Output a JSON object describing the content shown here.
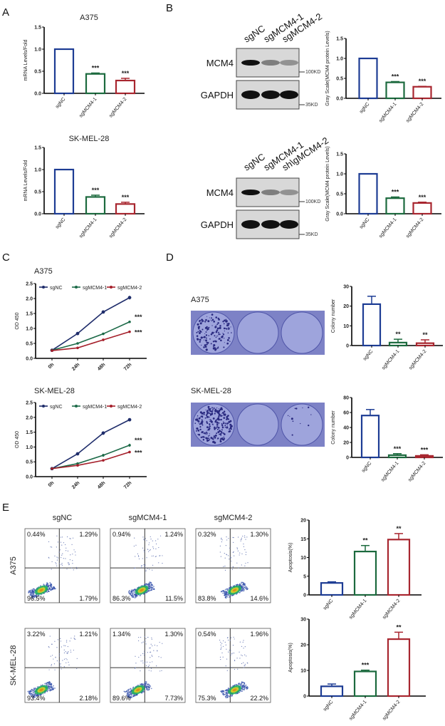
{
  "panels": {
    "A": "A",
    "B": "B",
    "C": "C",
    "D": "D",
    "E": "E"
  },
  "colors": {
    "sgNC": "#1d3c94",
    "sgMCM4-1": "#1c6a3e",
    "sgMCM4-2": "#a8262f",
    "line_sgNC": "#1f2d6b",
    "line_sgMCM4-1": "#1c6a48",
    "line_sgMCM4-2": "#a51f2a"
  },
  "blots": [
    {
      "lanes": [
        "sgNC",
        "sgMCM4-1",
        "sgMCM4-2"
      ],
      "bands": [
        "MCM4",
        "GAPDH"
      ],
      "markers": [
        "100KD",
        "35KD"
      ]
    },
    {
      "lanes": [
        "sgNC",
        "sgMCM4-1",
        "sh\\gMCM4-2"
      ],
      "bands": [
        "MCM4",
        "GAPDH"
      ],
      "markers": [
        "100KD",
        "35KD"
      ]
    }
  ],
  "dishes": {
    "labels": [
      "A375",
      "SK-MEL-28"
    ]
  },
  "flow": {
    "columns": [
      "sgNC",
      "sgMCM4-1",
      "sgMCM4-2"
    ],
    "rows": [
      "A375",
      "SK-MEL-28"
    ],
    "quadrants": [
      [
        [
          "0.44%",
          "1.29%",
          "96.5%",
          "1.79%"
        ],
        [
          "0.94%",
          "1.24%",
          "86.3%",
          "11.5%"
        ],
        [
          "0.32%",
          "1.30%",
          "83.8%",
          "14.6%"
        ]
      ],
      [
        [
          "3.22%",
          "1.21%",
          "93.4%",
          "2.18%"
        ],
        [
          "1.34%",
          "1.30%",
          "89.6%",
          "7.73%"
        ],
        [
          "0.54%",
          "1.96%",
          "75.3%",
          "22.2%"
        ]
      ]
    ]
  },
  "chart_data": [
    {
      "id": "A1",
      "type": "bar",
      "title": "A375",
      "ylabel": "mRNA Levels/Fold",
      "categories": [
        "sgNC",
        "sgMCM4-1",
        "sgMCM4-2"
      ],
      "values": [
        1.0,
        0.44,
        0.29
      ],
      "errors": [
        0,
        0.02,
        0.05
      ],
      "significance": [
        "",
        "***",
        "***"
      ],
      "ylim": [
        0,
        1.5
      ],
      "yticks": [
        "0.0",
        "0.5",
        "1.0",
        "1.5"
      ]
    },
    {
      "id": "A2",
      "type": "bar",
      "title": "SK-MEL-28",
      "ylabel": "mRNA Levels/Fold",
      "categories": [
        "sgNC",
        "sgMCM4-1",
        "sgMCM4-2"
      ],
      "values": [
        1.0,
        0.38,
        0.22
      ],
      "errors": [
        0,
        0.04,
        0.04
      ],
      "significance": [
        "",
        "***",
        "***"
      ],
      "ylim": [
        0,
        1.5
      ],
      "yticks": [
        "0.0",
        "0.5",
        "1.0",
        "1.5"
      ]
    },
    {
      "id": "B1",
      "type": "bar",
      "title": "",
      "ylabel": "Gray Scale(MCM4 protein Levels)",
      "categories": [
        "sgNC",
        "sgMCM4-1",
        "sgMCM4-2"
      ],
      "values": [
        1.0,
        0.4,
        0.29
      ],
      "errors": [
        0,
        0.02,
        0.01
      ],
      "significance": [
        "",
        "***",
        "***"
      ],
      "ylim": [
        0,
        1.5
      ],
      "yticks": [
        "0.0",
        "0.5",
        "1.0",
        "1.5"
      ]
    },
    {
      "id": "B2",
      "type": "bar",
      "title": "",
      "ylabel": "Gray Scale(MCM4 protein Levels)",
      "categories": [
        "sgNC",
        "sgMCM4-1",
        "sgMCM4-2"
      ],
      "values": [
        1.0,
        0.39,
        0.27
      ],
      "errors": [
        0,
        0.03,
        0.02
      ],
      "significance": [
        "",
        "***",
        "***"
      ],
      "ylim": [
        0,
        1.5
      ],
      "yticks": [
        "0.0",
        "0.5",
        "1.0",
        "1.5"
      ]
    },
    {
      "id": "C1",
      "type": "line",
      "title": "A375",
      "ylabel": "OD 450",
      "x": [
        "0h",
        "24h",
        "48h",
        "72h"
      ],
      "series": [
        {
          "name": "sgNC",
          "values": [
            0.27,
            0.83,
            1.55,
            2.03
          ],
          "errors": [
            0.02,
            0.02,
            0.03,
            0.06
          ]
        },
        {
          "name": "sgMCM4-1",
          "values": [
            0.27,
            0.5,
            0.82,
            1.22
          ],
          "errors": [
            0.02,
            0.02,
            0.02,
            0.03
          ]
        },
        {
          "name": "sgMCM4-2",
          "values": [
            0.26,
            0.35,
            0.62,
            0.89
          ],
          "errors": [
            0.02,
            0.02,
            0.02,
            0.02
          ]
        }
      ],
      "significance": [
        "***",
        "***"
      ],
      "ylim": [
        0,
        2.5
      ],
      "yticks": [
        "0.0",
        "0.5",
        "1.0",
        "1.5",
        "2.0",
        "2.5"
      ],
      "legend": "top"
    },
    {
      "id": "C2",
      "type": "line",
      "title": "SK-MEL-28",
      "ylabel": "OD 450",
      "x": [
        "0h",
        "24h",
        "48h",
        "72h"
      ],
      "series": [
        {
          "name": "sgNC",
          "values": [
            0.27,
            0.77,
            1.47,
            1.92
          ],
          "errors": [
            0.02,
            0.02,
            0.06,
            0.03
          ]
        },
        {
          "name": "sgMCM4-1",
          "values": [
            0.27,
            0.44,
            0.72,
            1.06
          ],
          "errors": [
            0.02,
            0.02,
            0.05,
            0.05
          ]
        },
        {
          "name": "sgMCM4-2",
          "values": [
            0.27,
            0.38,
            0.55,
            0.83
          ],
          "errors": [
            0.02,
            0.02,
            0.02,
            0.03
          ]
        }
      ],
      "significance": [
        "***",
        "***"
      ],
      "ylim": [
        0,
        2.5
      ],
      "yticks": [
        "0.0",
        "0.5",
        "1.0",
        "1.5",
        "2.0",
        "2.5"
      ],
      "legend": "top"
    },
    {
      "id": "D1",
      "type": "bar",
      "title": "",
      "ylabel": "Colony number",
      "categories": [
        "sgNC",
        "sgMCM4-1",
        "sgMCM4-2"
      ],
      "values": [
        21,
        1.5,
        1.2
      ],
      "errors": [
        4,
        1.7,
        1.7
      ],
      "significance": [
        "",
        "**",
        "**"
      ],
      "ylim": [
        0,
        30
      ],
      "yticks": [
        "0",
        "10",
        "20",
        "30"
      ]
    },
    {
      "id": "D2",
      "type": "bar",
      "title": "",
      "ylabel": "Colony number",
      "categories": [
        "sgNC",
        "sgMCM4-1",
        "sgMCM4-2"
      ],
      "values": [
        56,
        3,
        2
      ],
      "errors": [
        8,
        2,
        1.5
      ],
      "significance": [
        "",
        "***",
        "***"
      ],
      "ylim": [
        0,
        80
      ],
      "yticks": [
        "0",
        "20",
        "40",
        "60",
        "80"
      ]
    },
    {
      "id": "E1",
      "type": "bar",
      "title": "",
      "ylabel": "Apoptosis(%)",
      "categories": [
        "sgNC",
        "sgMCM4-1",
        "sgMCM4-2"
      ],
      "values": [
        3.2,
        11.6,
        14.8
      ],
      "errors": [
        0.3,
        1.6,
        1.6
      ],
      "significance": [
        "",
        "**",
        "**"
      ],
      "ylim": [
        0,
        20
      ],
      "yticks": [
        "0",
        "5",
        "10",
        "15",
        "20"
      ]
    },
    {
      "id": "E2",
      "type": "bar",
      "title": "",
      "ylabel": "Apoptosis(%)",
      "categories": [
        "sgNC",
        "sgMCM4-1",
        "sgMCM4-2"
      ],
      "values": [
        3.8,
        9.6,
        22.2
      ],
      "errors": [
        0.9,
        0.5,
        2.7
      ],
      "significance": [
        "",
        "***",
        "**"
      ],
      "ylim": [
        0,
        30
      ],
      "yticks": [
        "0",
        "10",
        "20",
        "30"
      ]
    }
  ]
}
